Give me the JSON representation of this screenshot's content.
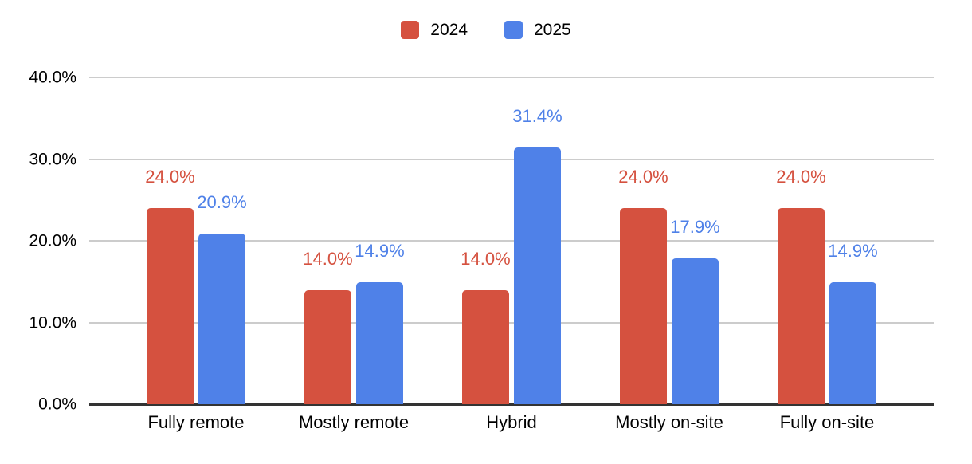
{
  "chart_data": {
    "type": "bar",
    "title": "",
    "categories": [
      "Fully remote",
      "Mostly remote",
      "Hybrid",
      "Mostly on-site",
      "Fully on-site"
    ],
    "series": [
      {
        "name": "2024",
        "color": "#D5513F",
        "values": [
          24.0,
          14.0,
          14.0,
          24.0,
          24.0
        ],
        "labels": [
          "24.0%",
          "14.0%",
          "14.0%",
          "24.0%",
          "24.0%"
        ]
      },
      {
        "name": "2025",
        "color": "#4F81E8",
        "values": [
          20.9,
          14.9,
          31.4,
          17.9,
          14.9
        ],
        "labels": [
          "20.9%",
          "14.9%",
          "31.4%",
          "17.9%",
          "14.9%"
        ]
      }
    ],
    "y_axis": {
      "tick_labels": [
        "40.0%",
        "30.0%",
        "20.0%",
        "10.0%",
        "0.0%"
      ],
      "tick_values": [
        40,
        30,
        20,
        10,
        0
      ],
      "min": 0,
      "max": 40
    },
    "legend_position": "top",
    "grid": true
  },
  "colors": {
    "gridline": "#cccccc",
    "axis_baseline": "#333333",
    "text": "#000000",
    "background": "#ffffff"
  }
}
